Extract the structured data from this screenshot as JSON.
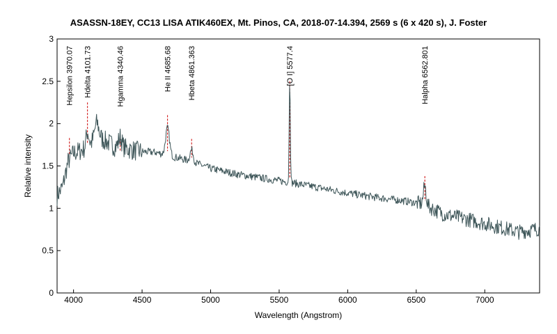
{
  "chart_data": {
    "type": "line",
    "title": "ASASSN-18EY, CC13 LISA ATIK460EX, Mt. Pinos, CA, 2018-07-14.394, 2569 s (6 x 420 s), J. Foster",
    "xlabel": "Wavelength (Angstrom)",
    "ylabel": "Relative intensity",
    "xlim": [
      3880,
      7400
    ],
    "ylim": [
      0,
      3
    ],
    "xticks": [
      4000,
      4500,
      5000,
      5500,
      6000,
      6500,
      7000
    ],
    "xtick_labels": [
      "4000",
      "4500",
      "5000",
      "5500",
      "6000",
      "6500",
      "7000"
    ],
    "yticks": [
      0,
      0.5,
      1,
      1.5,
      2,
      2.5,
      3
    ],
    "ytick_labels": [
      "0",
      "0.5",
      "1",
      "1.5",
      "2",
      "2.5",
      "3"
    ],
    "grid": false,
    "series_color": "#3d5558",
    "line_marker_color": "#cc0000",
    "lines": [
      {
        "wavelength": 3970.07,
        "label": "Hepsilon 3970.07",
        "top": 1.83
      },
      {
        "wavelength": 4101.73,
        "label": "Hdelta 4101.73",
        "top": 2.25
      },
      {
        "wavelength": 4340.46,
        "label": "Hgamma 4340.46",
        "top": 1.83
      },
      {
        "wavelength": 4685.68,
        "label": "He II 4685.68",
        "top": 2.1
      },
      {
        "wavelength": 4861.363,
        "label": "Hbeta 4861.363",
        "top": 1.82
      },
      {
        "wavelength": 5577.4,
        "label": "[O I] 5577.4",
        "top": 2.5
      },
      {
        "wavelength": 6562.801,
        "label": "Halpha 6562.801",
        "top": 1.38
      }
    ],
    "continuum": [
      [
        3880,
        1.15
      ],
      [
        3920,
        1.25
      ],
      [
        3960,
        1.55
      ],
      [
        4000,
        1.65
      ],
      [
        4050,
        1.68
      ],
      [
        4100,
        1.72
      ],
      [
        4150,
        1.8
      ],
      [
        4200,
        1.82
      ],
      [
        4250,
        1.78
      ],
      [
        4300,
        1.73
      ],
      [
        4350,
        1.72
      ],
      [
        4400,
        1.7
      ],
      [
        4450,
        1.68
      ],
      [
        4500,
        1.67
      ],
      [
        4600,
        1.66
      ],
      [
        4700,
        1.62
      ],
      [
        4800,
        1.58
      ],
      [
        4900,
        1.53
      ],
      [
        5000,
        1.47
      ],
      [
        5200,
        1.4
      ],
      [
        5400,
        1.35
      ],
      [
        5600,
        1.3
      ],
      [
        5800,
        1.24
      ],
      [
        6000,
        1.18
      ],
      [
        6200,
        1.13
      ],
      [
        6400,
        1.09
      ],
      [
        6550,
        1.05
      ],
      [
        6700,
        0.93
      ],
      [
        6900,
        0.86
      ],
      [
        7100,
        0.78
      ],
      [
        7250,
        0.72
      ],
      [
        7400,
        0.76
      ]
    ],
    "features": [
      {
        "center": 4101.73,
        "height": 0.18,
        "width": 10
      },
      {
        "center": 4170,
        "height": 0.2,
        "width": 15
      },
      {
        "center": 4340.46,
        "height": 0.12,
        "width": 12
      },
      {
        "center": 4685.68,
        "height": 0.32,
        "width": 14
      },
      {
        "center": 4861.363,
        "height": 0.14,
        "width": 12
      },
      {
        "center": 5577.4,
        "height": 1.25,
        "width": 4
      },
      {
        "center": 6562.801,
        "height": 0.22,
        "width": 10
      }
    ],
    "noise": [
      {
        "from": 3880,
        "to": 4500,
        "amplitude": 0.12
      },
      {
        "from": 4500,
        "to": 6500,
        "amplitude": 0.045
      },
      {
        "from": 6500,
        "to": 7400,
        "amplitude": 0.09
      }
    ]
  }
}
